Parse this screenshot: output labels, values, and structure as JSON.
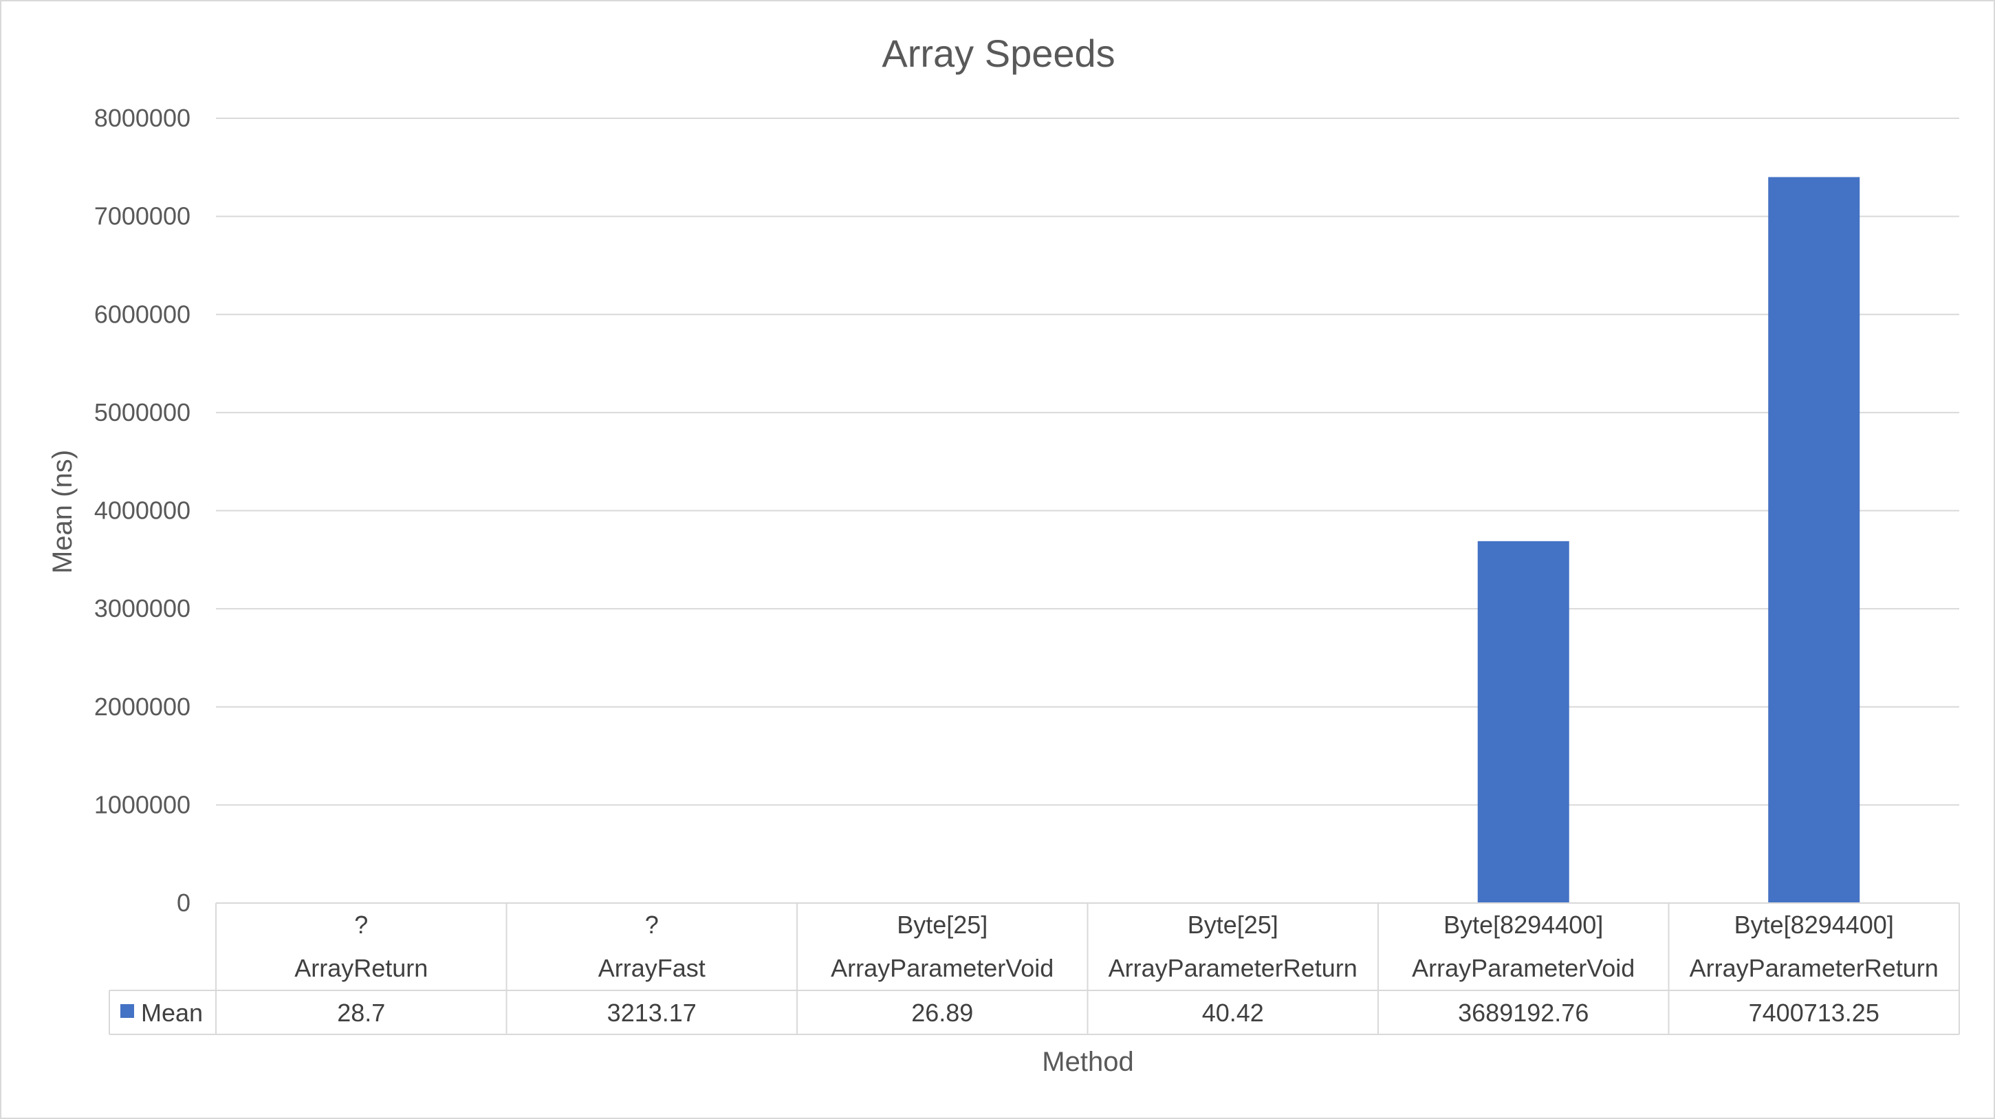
{
  "chart_data": {
    "type": "bar",
    "title": "Array Speeds",
    "xlabel": "Method",
    "ylabel": "Mean (ns)",
    "ylim": [
      0,
      8000000
    ],
    "yticks": [
      "0",
      "1000000",
      "2000000",
      "3000000",
      "4000000",
      "5000000",
      "6000000",
      "7000000",
      "8000000"
    ],
    "categories": [
      {
        "line1": "?",
        "line2": "ArrayReturn"
      },
      {
        "line1": "?",
        "line2": "ArrayFast"
      },
      {
        "line1": "Byte[25]",
        "line2": "ArrayParameterVoid"
      },
      {
        "line1": "Byte[25]",
        "line2": "ArrayParameterReturn"
      },
      {
        "line1": "Byte[8294400]",
        "line2": "ArrayParameterVoid"
      },
      {
        "line1": "Byte[8294400]",
        "line2": "ArrayParameterReturn"
      }
    ],
    "series": [
      {
        "name": "Mean",
        "color": "#4472c4",
        "values": [
          28.7,
          3213.17,
          26.89,
          40.42,
          3689192.76,
          7400713.25
        ],
        "value_labels": [
          "28.7",
          "3213.17",
          "26.89",
          "40.42",
          "3689192.76",
          "7400713.25"
        ]
      }
    ],
    "grid": true,
    "legend": "data-table"
  }
}
